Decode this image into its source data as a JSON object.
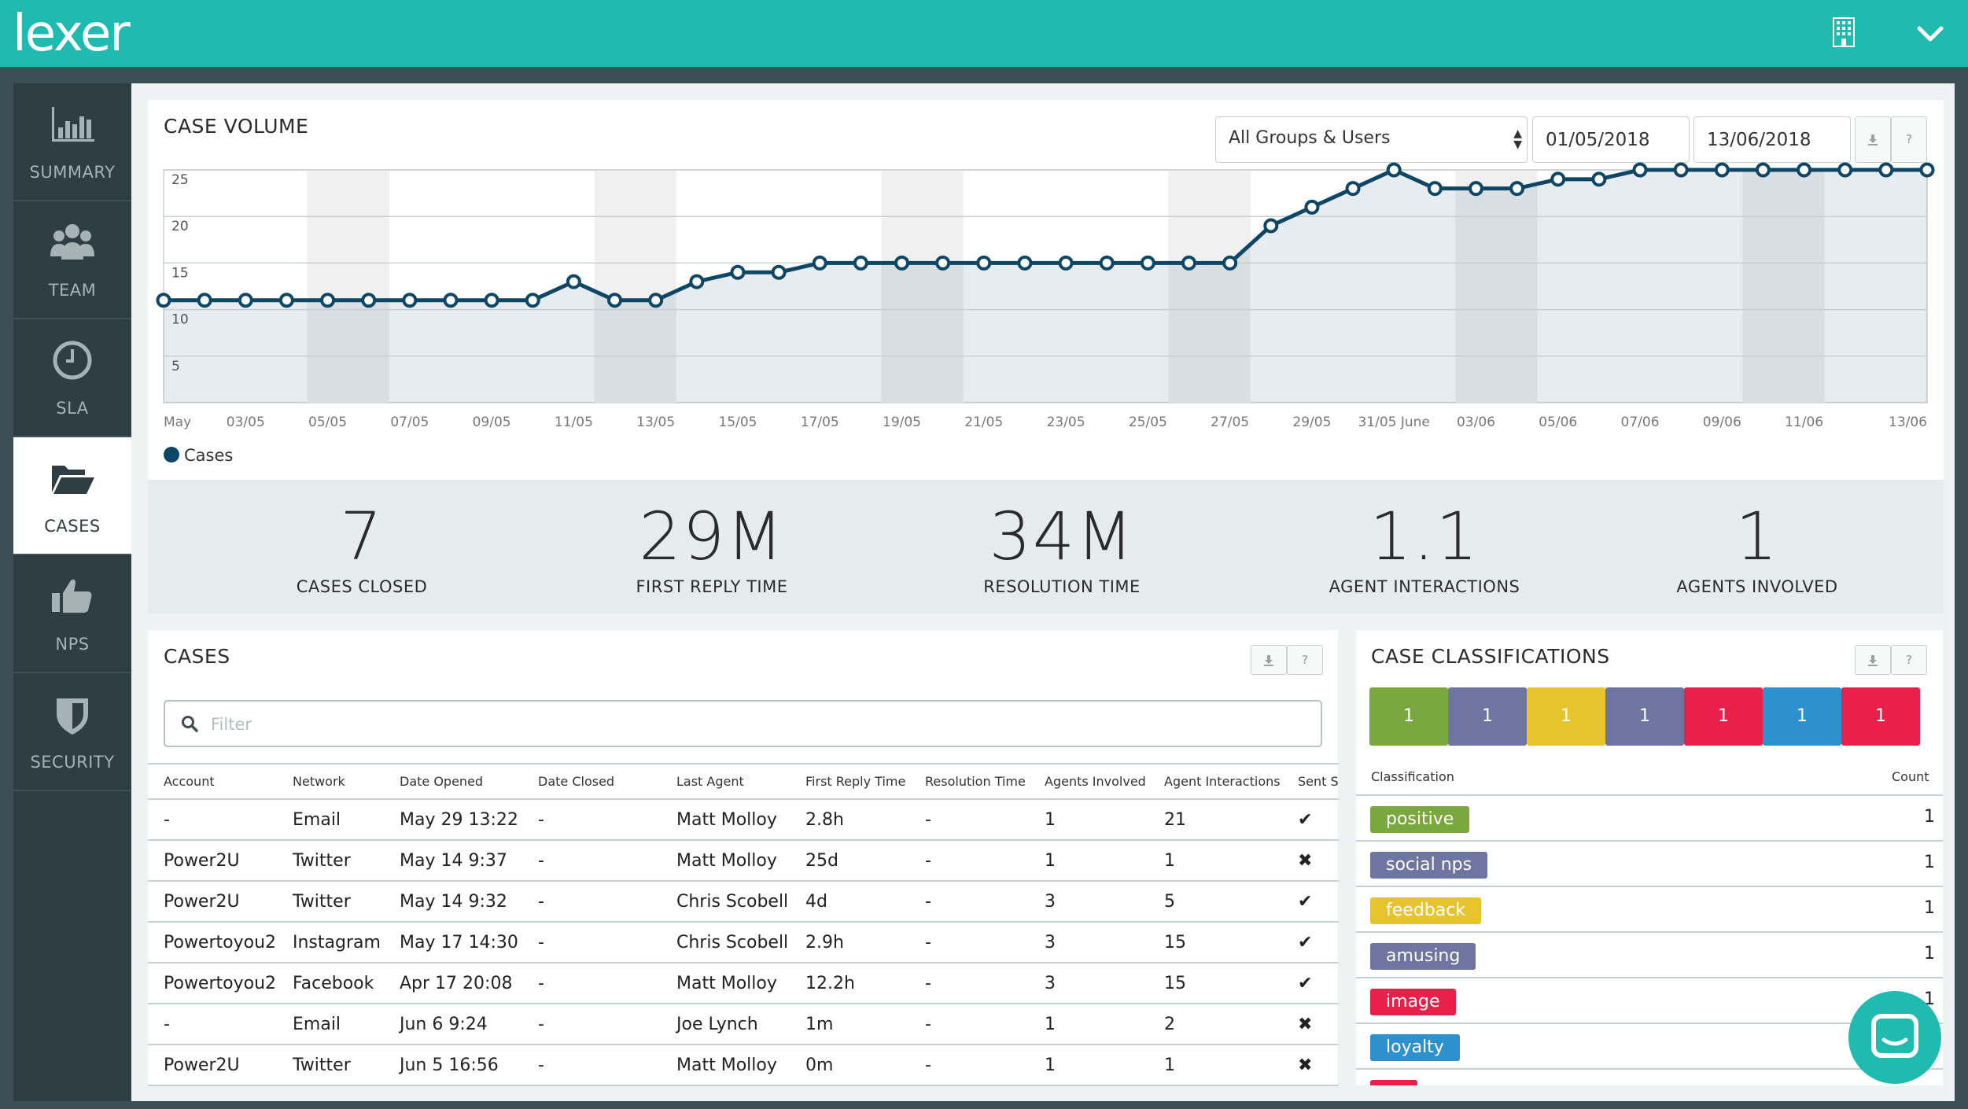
{
  "app": {
    "logo": "lexer"
  },
  "topbar": {
    "org_icon": "building-icon",
    "menu_icon": "chevron-down-icon"
  },
  "sidebar": {
    "items": [
      {
        "label": "SUMMARY",
        "icon": "bar-chart-icon"
      },
      {
        "label": "TEAM",
        "icon": "users-icon"
      },
      {
        "label": "SLA",
        "icon": "clock-icon"
      },
      {
        "label": "CASES",
        "icon": "folder-open-icon",
        "active": true
      },
      {
        "label": "NPS",
        "icon": "thumbs-up-icon"
      },
      {
        "label": "SECURITY",
        "icon": "shield-icon"
      }
    ]
  },
  "case_volume": {
    "title": "CASE VOLUME",
    "group_select": "All Groups & Users",
    "date_from": "01/05/2018",
    "date_to": "13/06/2018",
    "download_icon": "download-icon",
    "help_label": "?"
  },
  "chart_data": {
    "type": "line",
    "title": "",
    "xlabel": "",
    "ylabel": "",
    "ylim": [
      0,
      25
    ],
    "yticks": [
      "25",
      "20",
      "15",
      "10",
      "5"
    ],
    "xtick_labels": [
      "May",
      "03/05",
      "05/05",
      "07/05",
      "09/05",
      "11/05",
      "13/05",
      "15/05",
      "17/05",
      "19/05",
      "21/05",
      "23/05",
      "25/05",
      "27/05",
      "29/05",
      "31/05 June",
      "03/06",
      "05/06",
      "07/06",
      "09/06",
      "11/06",
      "13/06"
    ],
    "grid": true,
    "legend": "bottom-left",
    "color": "#0e4666",
    "series": [
      {
        "name": "Cases",
        "values": [
          11,
          11,
          11,
          11,
          11,
          11,
          11,
          11,
          11,
          11,
          13,
          11,
          11,
          13,
          14,
          14,
          15,
          15,
          15,
          15,
          15,
          15,
          15,
          15,
          15,
          15,
          15,
          19,
          21,
          23,
          25,
          23,
          23,
          23,
          24,
          24,
          25,
          25,
          25,
          25,
          25,
          25,
          25,
          25
        ]
      }
    ]
  },
  "stats": [
    {
      "value": "7",
      "label": "CASES CLOSED"
    },
    {
      "value": "29M",
      "label": "FIRST REPLY TIME"
    },
    {
      "value": "34M",
      "label": "RESOLUTION TIME"
    },
    {
      "value": "1.1",
      "label": "AGENT INTERACTIONS"
    },
    {
      "value": "1",
      "label": "AGENTS INVOLVED"
    }
  ],
  "cases": {
    "title": "CASES",
    "filter_placeholder": "Filter",
    "columns": [
      "Account",
      "Network",
      "Date Opened",
      "Date Closed",
      "Last Agent",
      "First Reply Time",
      "Resolution Time",
      "Agents Involved",
      "Agent Interactions",
      "Sent S"
    ],
    "rows": [
      [
        "-",
        "Email",
        "May 29 13:22",
        "-",
        "Matt Molloy",
        "2.8h",
        "-",
        "1",
        "21",
        "✔"
      ],
      [
        "Power2U",
        "Twitter",
        "May 14 9:37",
        "-",
        "Matt Molloy",
        "25d",
        "-",
        "1",
        "1",
        "✖"
      ],
      [
        "Power2U",
        "Twitter",
        "May 14 9:32",
        "-",
        "Chris Scobell",
        "4d",
        "-",
        "3",
        "5",
        "✔"
      ],
      [
        "Powertoyou2",
        "Instagram",
        "May 17 14:30",
        "-",
        "Chris Scobell",
        "2.9h",
        "-",
        "3",
        "15",
        "✔"
      ],
      [
        "Powertoyou2",
        "Facebook",
        "Apr 17 20:08",
        "-",
        "Matt Molloy",
        "12.2h",
        "-",
        "3",
        "15",
        "✔"
      ],
      [
        "-",
        "Email",
        "Jun 6 9:24",
        "-",
        "Joe Lynch",
        "1m",
        "-",
        "1",
        "2",
        "✖"
      ],
      [
        "Power2U",
        "Twitter",
        "Jun 5 16:56",
        "-",
        "Matt Molloy",
        "0m",
        "-",
        "1",
        "1",
        "✖"
      ]
    ]
  },
  "classifications": {
    "title": "CASE CLASSIFICATIONS",
    "col_classification": "Classification",
    "col_count": "Count",
    "blocks": [
      {
        "value": "1",
        "color": "#7aa83f"
      },
      {
        "value": "1",
        "color": "#6e75a0"
      },
      {
        "value": "1",
        "color": "#e8c42c"
      },
      {
        "value": "1",
        "color": "#6e75a0"
      },
      {
        "value": "1",
        "color": "#e8204a"
      },
      {
        "value": "1",
        "color": "#2e90cc"
      },
      {
        "value": "1",
        "color": "#e8204a"
      }
    ],
    "rows": [
      {
        "tag": "positive",
        "count": "1",
        "color": "#7aa83f"
      },
      {
        "tag": "social nps",
        "count": "1",
        "color": "#6e75a0"
      },
      {
        "tag": "feedback",
        "count": "1",
        "color": "#e8c42c"
      },
      {
        "tag": "amusing",
        "count": "1",
        "color": "#6e75a0"
      },
      {
        "tag": "image",
        "count": "1",
        "color": "#e8204a"
      },
      {
        "tag": "loyalty",
        "count": "",
        "color": "#2e90cc"
      },
      {
        "tag": "",
        "count": "",
        "color": "#e8204a"
      }
    ]
  },
  "chat": {
    "icon": "chat-icon"
  }
}
